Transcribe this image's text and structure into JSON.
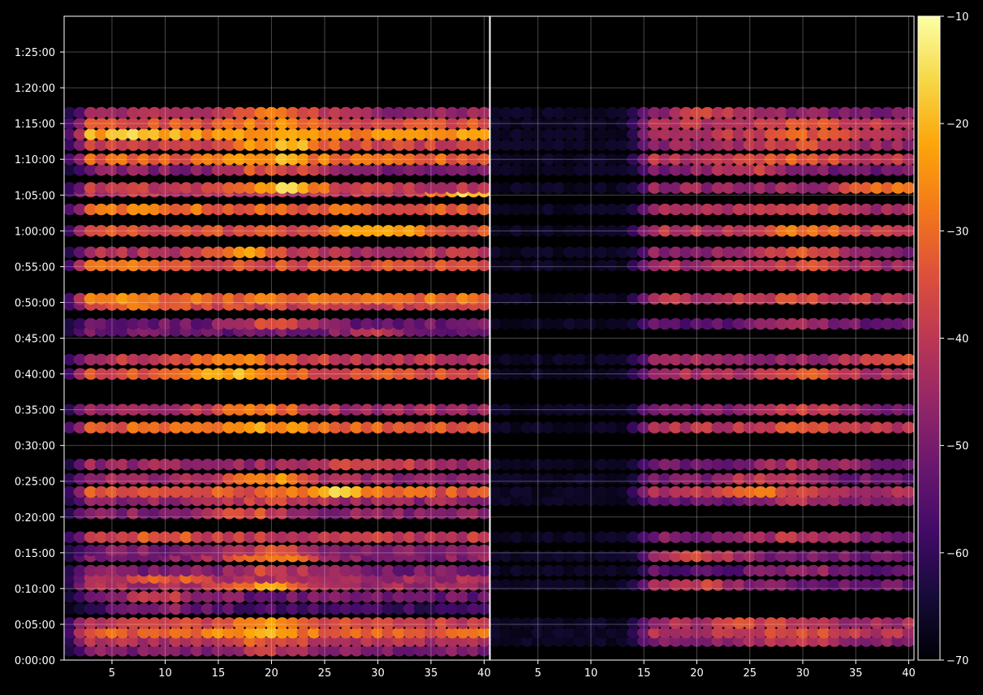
{
  "chart_data": {
    "type": "heatmap",
    "title": "",
    "xlabel": "",
    "ylabel": "",
    "background": "#000000",
    "grid": true,
    "colormap": "inferno",
    "colorbar": {
      "vmin": -70,
      "vmax": -10,
      "ticks": [
        -70,
        -60,
        -50,
        -40,
        -30,
        -20,
        -10
      ],
      "tick_labels": [
        "−70",
        "−60",
        "−50",
        "−40",
        "−30",
        "−20",
        "−10"
      ]
    },
    "y_axis": {
      "range_seconds": [
        0,
        5400
      ],
      "ticks": [
        {
          "value": 0,
          "label": "0:00:00"
        },
        {
          "value": 300,
          "label": "0:05:00"
        },
        {
          "value": 600,
          "label": "0:10:00"
        },
        {
          "value": 900,
          "label": "0:15:00"
        },
        {
          "value": 1200,
          "label": "0:20:00"
        },
        {
          "value": 1500,
          "label": "0:25:00"
        },
        {
          "value": 1800,
          "label": "0:30:00"
        },
        {
          "value": 2100,
          "label": "0:35:00"
        },
        {
          "value": 2400,
          "label": "0:40:00"
        },
        {
          "value": 2700,
          "label": "0:45:00"
        },
        {
          "value": 3000,
          "label": "0:50:00"
        },
        {
          "value": 3300,
          "label": "0:55:00"
        },
        {
          "value": 3600,
          "label": "1:00:00"
        },
        {
          "value": 3900,
          "label": "1:05:00"
        },
        {
          "value": 4200,
          "label": "1:10:00"
        },
        {
          "value": 4500,
          "label": "1:15:00"
        },
        {
          "value": 4800,
          "label": "1:20:00"
        },
        {
          "value": 5100,
          "label": "1:25:00"
        }
      ]
    },
    "panels": [
      {
        "x_range": [
          1,
          40
        ],
        "x_ticks": [
          5,
          10,
          15,
          20,
          25,
          30,
          35,
          40
        ],
        "x_tick_labels": [
          "5",
          "10",
          "15",
          "20",
          "25",
          "30",
          "35",
          "40"
        ],
        "x_start": 1,
        "intensity_scale": 1.0,
        "rows": [
          {
            "t": 4590,
            "v": -45,
            "peak": -28,
            "pk": 20
          },
          {
            "t": 4500,
            "v": -35,
            "peak": -27,
            "pk": 20
          },
          {
            "t": 4410,
            "v": -25,
            "peak": -18,
            "pk": 8
          },
          {
            "t": 4320,
            "v": -37,
            "peak": -20,
            "pk": 21
          },
          {
            "t": 4200,
            "v": -32,
            "peak": -22,
            "pk": 20
          },
          {
            "t": 4110,
            "v": -48,
            "peak": -32,
            "pk": 20
          },
          {
            "t": 3960,
            "v": -40,
            "peak": -18,
            "pk": 21
          },
          {
            "t": 3930,
            "v": -42,
            "peak": -18,
            "pk": 39
          },
          {
            "t": 3780,
            "v": -32,
            "peak": -28,
            "pk": 9
          },
          {
            "t": 3600,
            "v": -35,
            "peak": -20,
            "pk": 30
          },
          {
            "t": 3420,
            "v": -42,
            "peak": -25,
            "pk": 17
          },
          {
            "t": 3310,
            "v": -35,
            "peak": -28,
            "pk": 5
          },
          {
            "t": 3030,
            "v": -30,
            "peak": -27,
            "pk": 5
          },
          {
            "t": 2980,
            "v": -38,
            "peak": -30,
            "pk": 9
          },
          {
            "t": 2820,
            "v": -52,
            "peak": -38,
            "pk": 20
          },
          {
            "t": 2760,
            "v": -52,
            "peak": -42,
            "pk": 30
          },
          {
            "t": 2520,
            "v": -40,
            "peak": -24,
            "pk": 17
          },
          {
            "t": 2400,
            "v": -34,
            "peak": -18,
            "pk": 17
          },
          {
            "t": 2100,
            "v": -44,
            "peak": -26,
            "pk": 19
          },
          {
            "t": 1950,
            "v": -32,
            "peak": -22,
            "pk": 21
          },
          {
            "t": 1640,
            "v": -46,
            "peak": -34,
            "pk": 30
          },
          {
            "t": 1520,
            "v": -46,
            "peak": -26,
            "pk": 20
          },
          {
            "t": 1410,
            "v": -34,
            "peak": -20,
            "pk": 26
          },
          {
            "t": 1340,
            "v": -46,
            "peak": -36,
            "pk": 20
          },
          {
            "t": 1230,
            "v": -48,
            "peak": -34,
            "pk": 18
          },
          {
            "t": 1030,
            "v": -40,
            "peak": -32,
            "pk": 10
          },
          {
            "t": 920,
            "v": -50,
            "peak": -36,
            "pk": 20
          },
          {
            "t": 870,
            "v": -48,
            "peak": -24,
            "pk": 20
          },
          {
            "t": 750,
            "v": -50,
            "peak": -38,
            "pk": 20
          },
          {
            "t": 690,
            "v": -44,
            "peak": -32,
            "pk": 10
          },
          {
            "t": 630,
            "v": -44,
            "peak": -24,
            "pk": 20
          },
          {
            "t": 530,
            "v": -52,
            "peak": -40,
            "pk": 10
          },
          {
            "t": 430,
            "v": -58,
            "peak": -48,
            "pk": 10
          },
          {
            "t": 310,
            "v": -38,
            "peak": -24,
            "pk": 20
          },
          {
            "t": 230,
            "v": -32,
            "peak": -22,
            "pk": 19
          },
          {
            "t": 160,
            "v": -42,
            "peak": -32,
            "pk": 20
          },
          {
            "t": 80,
            "v": -50,
            "peak": -40,
            "pk": 20
          }
        ]
      },
      {
        "x_range": [
          1,
          40
        ],
        "x_ticks": [
          5,
          10,
          15,
          20,
          25,
          30,
          35,
          40
        ],
        "x_tick_labels": [
          "5",
          "10",
          "15",
          "20",
          "25",
          "30",
          "35",
          "40"
        ],
        "x_start": 14,
        "intensity_scale": 0.85,
        "rows": [
          {
            "t": 4590,
            "v": -45,
            "peak": -32,
            "pk": 22
          },
          {
            "t": 4500,
            "v": -36,
            "peak": -28,
            "pk": 30
          },
          {
            "t": 4410,
            "v": -36,
            "peak": -26,
            "pk": 30
          },
          {
            "t": 4320,
            "v": -42,
            "peak": -28,
            "pk": 30
          },
          {
            "t": 4200,
            "v": -36,
            "peak": -26,
            "pk": 30
          },
          {
            "t": 4110,
            "v": -48,
            "peak": -34,
            "pk": 25
          },
          {
            "t": 3960,
            "v": -42,
            "peak": -22,
            "pk": 38
          },
          {
            "t": 3780,
            "v": -40,
            "peak": -30,
            "pk": 30
          },
          {
            "t": 3600,
            "v": -36,
            "peak": -20,
            "pk": 30
          },
          {
            "t": 3420,
            "v": -44,
            "peak": -28,
            "pk": 30
          },
          {
            "t": 3310,
            "v": -40,
            "peak": -30,
            "pk": 30
          },
          {
            "t": 3030,
            "v": -36,
            "peak": -30,
            "pk": 30
          },
          {
            "t": 2820,
            "v": -52,
            "peak": -40,
            "pk": 30
          },
          {
            "t": 2520,
            "v": -42,
            "peak": -28,
            "pk": 38
          },
          {
            "t": 2400,
            "v": -38,
            "peak": -28,
            "pk": 30
          },
          {
            "t": 2100,
            "v": -46,
            "peak": -30,
            "pk": 30
          },
          {
            "t": 1950,
            "v": -36,
            "peak": -26,
            "pk": 30
          },
          {
            "t": 1640,
            "v": -48,
            "peak": -38,
            "pk": 30
          },
          {
            "t": 1520,
            "v": -48,
            "peak": -34,
            "pk": 26
          },
          {
            "t": 1410,
            "v": -38,
            "peak": -22,
            "pk": 26
          },
          {
            "t": 1340,
            "v": -48,
            "peak": -38,
            "pk": 30
          },
          {
            "t": 1030,
            "v": -46,
            "peak": -34,
            "pk": 30
          },
          {
            "t": 870,
            "v": -48,
            "peak": -30,
            "pk": 20
          },
          {
            "t": 750,
            "v": -52,
            "peak": -40,
            "pk": 30
          },
          {
            "t": 630,
            "v": -48,
            "peak": -32,
            "pk": 20
          },
          {
            "t": 310,
            "v": -40,
            "peak": -30,
            "pk": 25
          },
          {
            "t": 230,
            "v": -36,
            "peak": -28,
            "pk": 30
          },
          {
            "t": 160,
            "v": -44,
            "peak": -34,
            "pk": 30
          }
        ]
      }
    ]
  }
}
